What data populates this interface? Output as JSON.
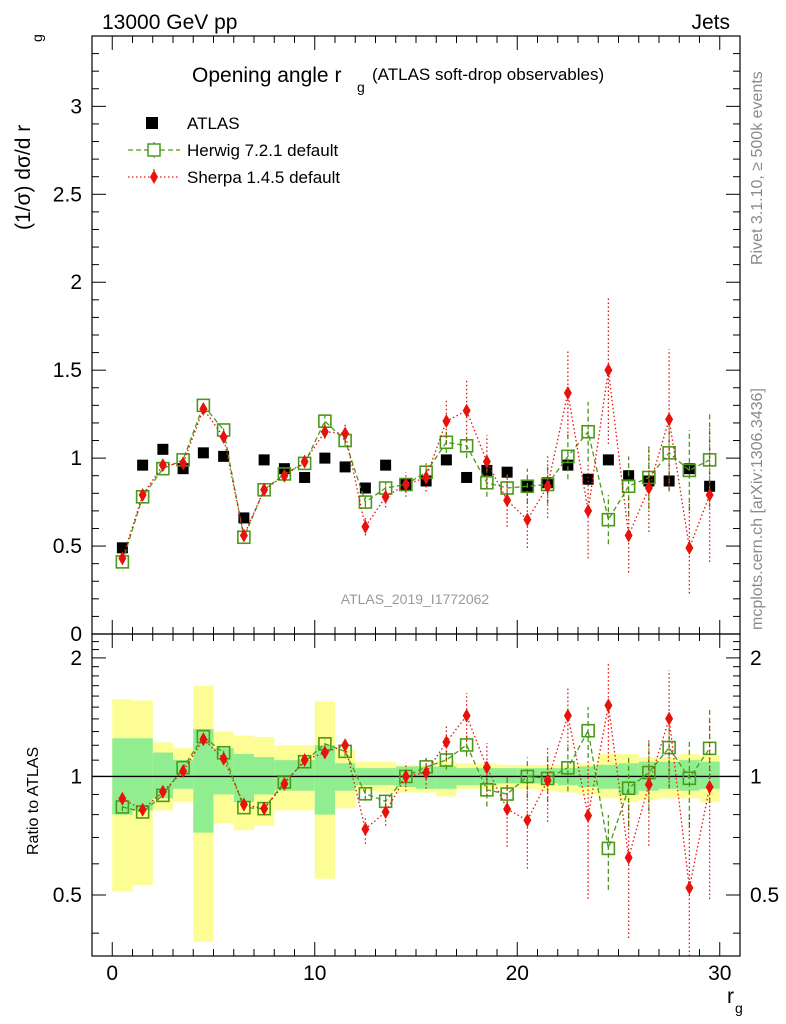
{
  "header": {
    "left": "13000 GeV pp",
    "right": "Jets"
  },
  "side": {
    "rivet": "Rivet 3.1.10, ≥ 500k events",
    "mcplots": "mcplots.cern.ch [arXiv:1306.3436]"
  },
  "chart_data": {
    "type": "scatter",
    "title": "Opening angle r",
    "title_sub": "g",
    "title_suffix": "(ATLAS soft-drop observables)",
    "watermark": "ATLAS_2019_I1772062",
    "xlabel": "r",
    "xlabel_sub": "g",
    "ylabel": "(1/σ) dσ/d r",
    "ylabel_sub": "g",
    "ratio_ylabel": "Ratio to ATLAS",
    "xlim": [
      -1,
      31
    ],
    "ylim": [
      0,
      3.4
    ],
    "ratio_ylim": [
      0.35,
      2.3
    ],
    "x_ticks": [
      "0",
      "10",
      "20",
      "30"
    ],
    "y_ticks": [
      "0",
      "0.5",
      "1",
      "1.5",
      "2",
      "2.5",
      "3"
    ],
    "ratio_ticks": [
      "0.5",
      "1",
      "2"
    ],
    "x": [
      0.5,
      1.5,
      2.5,
      3.5,
      4.5,
      5.5,
      6.5,
      7.5,
      8.5,
      9.5,
      10.5,
      11.5,
      12.5,
      13.5,
      14.5,
      15.5,
      16.5,
      17.5,
      18.5,
      19.5,
      20.5,
      21.5,
      22.5,
      23.5,
      24.5,
      25.5,
      26.5,
      27.5,
      28.5,
      29.5
    ],
    "legend": [
      {
        "name": "ATLAS",
        "style": "square-filled",
        "color": "#000000"
      },
      {
        "name": "Herwig 7.2.1 default",
        "style": "square-open-dashed",
        "color": "#4a9a1a"
      },
      {
        "name": "Sherpa 1.4.5 default",
        "style": "diamond-dotted",
        "color": "#e8120c"
      }
    ],
    "series": [
      {
        "name": "ATLAS",
        "values": [
          0.49,
          0.96,
          1.05,
          0.94,
          1.03,
          1.01,
          0.66,
          0.99,
          0.94,
          0.89,
          1.0,
          0.95,
          0.83,
          0.96,
          0.85,
          0.87,
          0.99,
          0.89,
          0.93,
          0.92,
          0.84,
          0.86,
          0.96,
          0.88,
          0.99,
          0.9,
          0.87,
          0.87,
          0.94,
          0.84
        ]
      },
      {
        "name": "Herwig 7.2.1 default",
        "values": [
          0.41,
          0.78,
          0.94,
          0.99,
          1.3,
          1.16,
          0.55,
          0.82,
          0.91,
          0.97,
          1.21,
          1.1,
          0.75,
          0.83,
          0.85,
          0.92,
          1.09,
          1.07,
          0.86,
          0.83,
          0.84,
          0.85,
          1.01,
          1.15,
          0.65,
          0.84,
          0.89,
          1.03,
          0.93,
          0.99
        ],
        "errors": [
          0.01,
          0.01,
          0.01,
          0.01,
          0.02,
          0.02,
          0.01,
          0.02,
          0.02,
          0.02,
          0.03,
          0.03,
          0.03,
          0.03,
          0.04,
          0.05,
          0.06,
          0.07,
          0.08,
          0.09,
          0.1,
          0.11,
          0.13,
          0.17,
          0.14,
          0.17,
          0.18,
          0.22,
          0.23,
          0.27
        ]
      },
      {
        "name": "Sherpa 1.4.5 default",
        "values": [
          0.43,
          0.79,
          0.96,
          0.97,
          1.28,
          1.12,
          0.56,
          0.82,
          0.9,
          0.98,
          1.15,
          1.14,
          0.61,
          0.78,
          0.85,
          0.89,
          1.21,
          1.27,
          0.98,
          0.76,
          0.65,
          0.84,
          1.37,
          0.7,
          1.5,
          0.56,
          0.83,
          1.22,
          0.49,
          0.79
        ],
        "errors": [
          0.01,
          0.01,
          0.01,
          0.02,
          0.02,
          0.02,
          0.02,
          0.02,
          0.03,
          0.03,
          0.04,
          0.05,
          0.05,
          0.06,
          0.07,
          0.08,
          0.12,
          0.18,
          0.15,
          0.15,
          0.16,
          0.18,
          0.25,
          0.27,
          0.42,
          0.21,
          0.25,
          0.4,
          0.26,
          0.38
        ]
      }
    ],
    "ratio": {
      "band_green": [
        [
          0.8,
          1.25
        ],
        [
          0.82,
          1.25
        ],
        [
          0.88,
          1.15
        ],
        [
          0.93,
          1.1
        ],
        [
          0.72,
          1.32
        ],
        [
          0.9,
          1.18
        ],
        [
          0.86,
          1.14
        ],
        [
          0.9,
          1.12
        ],
        [
          0.92,
          1.1
        ],
        [
          0.92,
          1.1
        ],
        [
          0.8,
          1.2
        ],
        [
          0.92,
          1.08
        ],
        [
          0.95,
          1.05
        ],
        [
          0.95,
          1.05
        ],
        [
          0.94,
          1.06
        ],
        [
          0.93,
          1.06
        ],
        [
          0.93,
          1.06
        ],
        [
          0.95,
          1.05
        ],
        [
          0.95,
          1.05
        ],
        [
          0.96,
          1.05
        ],
        [
          0.96,
          1.05
        ],
        [
          0.96,
          1.05
        ],
        [
          0.95,
          1.05
        ],
        [
          0.94,
          1.06
        ],
        [
          0.93,
          1.07
        ],
        [
          0.9,
          1.08
        ],
        [
          0.92,
          1.09
        ],
        [
          0.93,
          1.09
        ],
        [
          0.92,
          1.1
        ],
        [
          0.93,
          1.09
        ]
      ],
      "band_yellow": [
        [
          0.51,
          1.57
        ],
        [
          0.53,
          1.56
        ],
        [
          0.82,
          1.22
        ],
        [
          0.86,
          1.18
        ],
        [
          0.38,
          1.7
        ],
        [
          0.76,
          1.3
        ],
        [
          0.73,
          1.27
        ],
        [
          0.75,
          1.26
        ],
        [
          0.82,
          1.2
        ],
        [
          0.82,
          1.2
        ],
        [
          0.55,
          1.55
        ],
        [
          0.83,
          1.17
        ],
        [
          0.92,
          1.09
        ],
        [
          0.91,
          1.09
        ],
        [
          0.91,
          1.07
        ],
        [
          0.91,
          1.07
        ],
        [
          0.89,
          1.09
        ],
        [
          0.93,
          1.08
        ],
        [
          0.93,
          1.08
        ],
        [
          0.94,
          1.07
        ],
        [
          0.93,
          1.07
        ],
        [
          0.92,
          1.07
        ],
        [
          0.91,
          1.07
        ],
        [
          0.9,
          1.08
        ],
        [
          0.88,
          1.14
        ],
        [
          0.86,
          1.14
        ],
        [
          0.87,
          1.12
        ],
        [
          0.88,
          1.12
        ],
        [
          0.88,
          1.14
        ],
        [
          0.86,
          1.13
        ]
      ]
    }
  }
}
